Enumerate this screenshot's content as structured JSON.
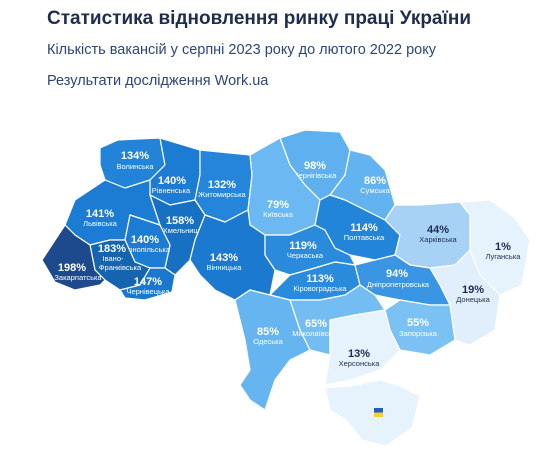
{
  "header": {
    "title": "Статистика відновлення ринку праці України",
    "subtitle": "Кількість вакансій у серпні 2023 року до лютого 2022 року",
    "source": "Результати дослідження Work.ua"
  },
  "regions": [
    {
      "name": "Волинська",
      "value": "134%",
      "color": "#2383d9",
      "text_color": "#ffffff"
    },
    {
      "name": "Рівненська",
      "value": "140%",
      "color": "#1c7bd3",
      "text_color": "#ffffff"
    },
    {
      "name": "Житомирська",
      "value": "132%",
      "color": "#2485da",
      "text_color": "#ffffff"
    },
    {
      "name": "Чернігівська",
      "value": "98%",
      "color": "#5eb0ef",
      "text_color": "#ffffff"
    },
    {
      "name": "Сумська",
      "value": "86%",
      "color": "#62b3f0",
      "text_color": "#ffffff"
    },
    {
      "name": "Київська",
      "value": "79%",
      "color": "#6cb8f2",
      "text_color": "#ffffff"
    },
    {
      "name": "Львівська",
      "value": "141%",
      "color": "#1c7bd3",
      "text_color": "#ffffff"
    },
    {
      "name": "Хмельницька",
      "value": "158%",
      "color": "#1870c2",
      "text_color": "#ffffff"
    },
    {
      "name": "Тернопільська",
      "value": "140%",
      "color": "#1c7bd3",
      "text_color": "#ffffff"
    },
    {
      "name_lines": [
        "Івано-",
        "Франківська"
      ],
      "value": "183%",
      "color": "#1564b0",
      "text_color": "#ffffff"
    },
    {
      "name": "Закарпатська",
      "value": "198%",
      "color": "#1c4a8c",
      "text_color": "#ffffff"
    },
    {
      "name": "Чернівецька",
      "value": "147%",
      "color": "#1b78cf",
      "text_color": "#ffffff"
    },
    {
      "name": "Вінницька",
      "value": "143%",
      "color": "#1b79d0",
      "text_color": "#ffffff"
    },
    {
      "name": "Черкаська",
      "value": "119%",
      "color": "#2a8adc",
      "text_color": "#ffffff"
    },
    {
      "name": "Полтавська",
      "value": "114%",
      "color": "#2385d9",
      "text_color": "#ffffff"
    },
    {
      "name": "Харківська",
      "value": "44%",
      "color": "#a7d2f5",
      "text_color": "#1e2c4f"
    },
    {
      "name": "Луганська",
      "value": "1%",
      "color": "#e6f2fc",
      "text_color": "#1e2c4f"
    },
    {
      "name": "Кіровоградська",
      "value": "113%",
      "color": "#2a8adc",
      "text_color": "#ffffff"
    },
    {
      "name": "Дніпропетровська",
      "value": "94%",
      "color": "#3a96e4",
      "text_color": "#ffffff"
    },
    {
      "name": "Донецька",
      "value": "19%",
      "color": "#e1eefb",
      "text_color": "#1e2c4f"
    },
    {
      "name": "Одеська",
      "value": "85%",
      "color": "#66b4f0",
      "text_color": "#ffffff"
    },
    {
      "name": "Миколаївська",
      "value": "65%",
      "color": "#74bdf2",
      "text_color": "#ffffff"
    },
    {
      "name": "Запорізька",
      "value": "55%",
      "color": "#7cc1f3",
      "text_color": "#ffffff"
    },
    {
      "name": "Херсонська",
      "value": "13%",
      "color": "#e6f2fc",
      "text_color": "#1e2c4f"
    }
  ],
  "crimea": {
    "color": "#e6f2fc",
    "icon": "ukraine-flag-icon",
    "flag_top": "#1f5fbf",
    "flag_bottom": "#f7d21e"
  }
}
